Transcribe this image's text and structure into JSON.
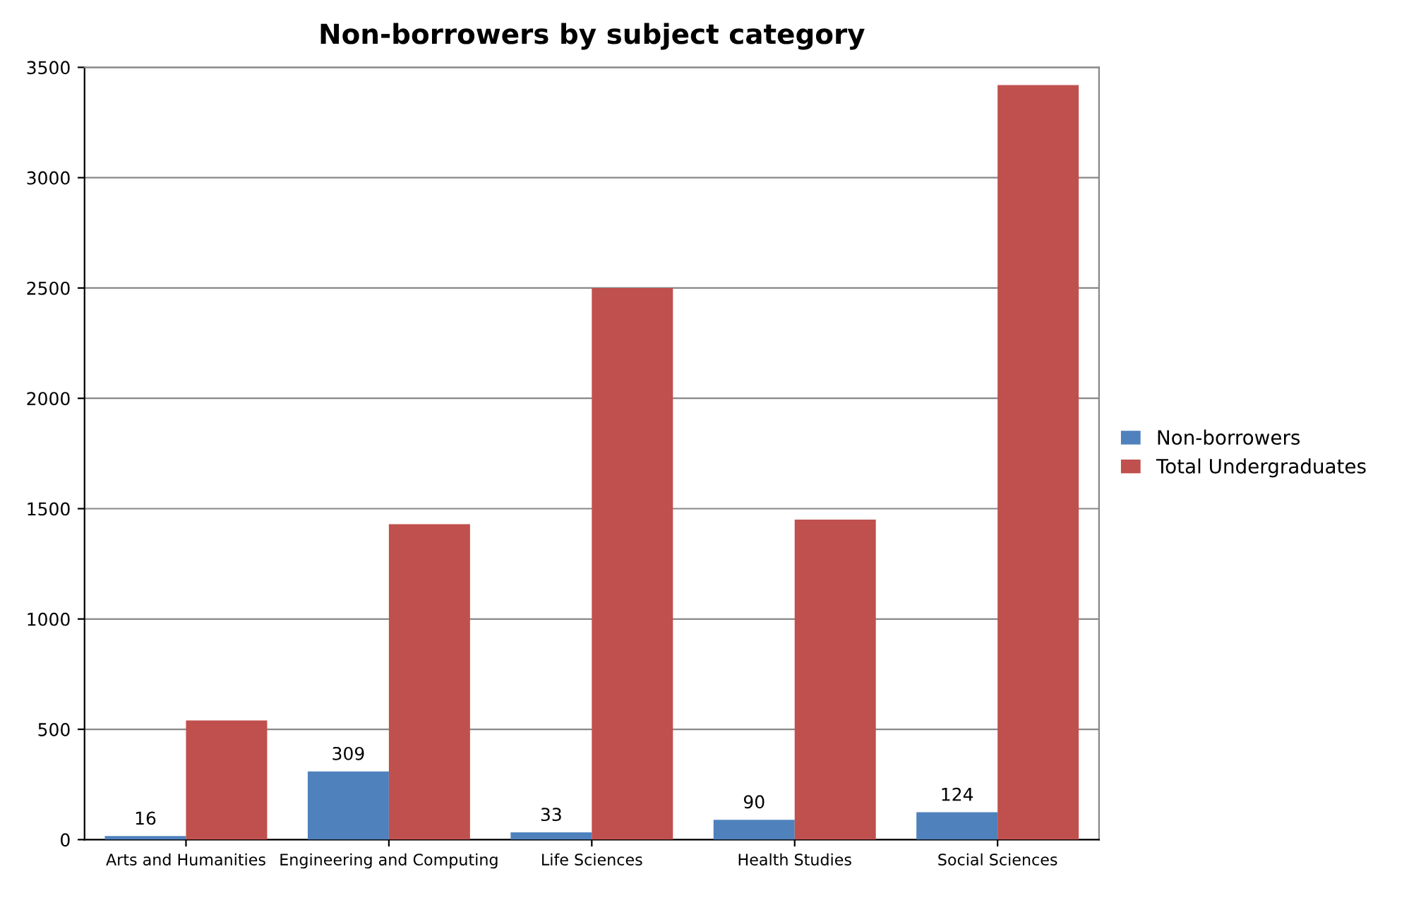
{
  "chart_data": {
    "type": "bar",
    "title": "Non-borrowers by subject category",
    "categories": [
      "Arts and Humanities",
      "Engineering and Computing",
      "Life Sciences",
      "Health Studies",
      "Social Sciences"
    ],
    "series": [
      {
        "name": "Non-borrowers",
        "color": "#4f81bd",
        "values": [
          16,
          309,
          33,
          90,
          124
        ],
        "value_labels": [
          "16",
          "309",
          "33",
          "90",
          "124"
        ]
      },
      {
        "name": "Total Undergraduates",
        "color": "#c0504d",
        "values": [
          540,
          1430,
          2500,
          1450,
          3420
        ]
      }
    ],
    "ylim": [
      0,
      3500
    ],
    "yticks": [
      0,
      500,
      1000,
      1500,
      2000,
      2500,
      3000,
      3500
    ],
    "grid": "y",
    "legend": "right"
  }
}
